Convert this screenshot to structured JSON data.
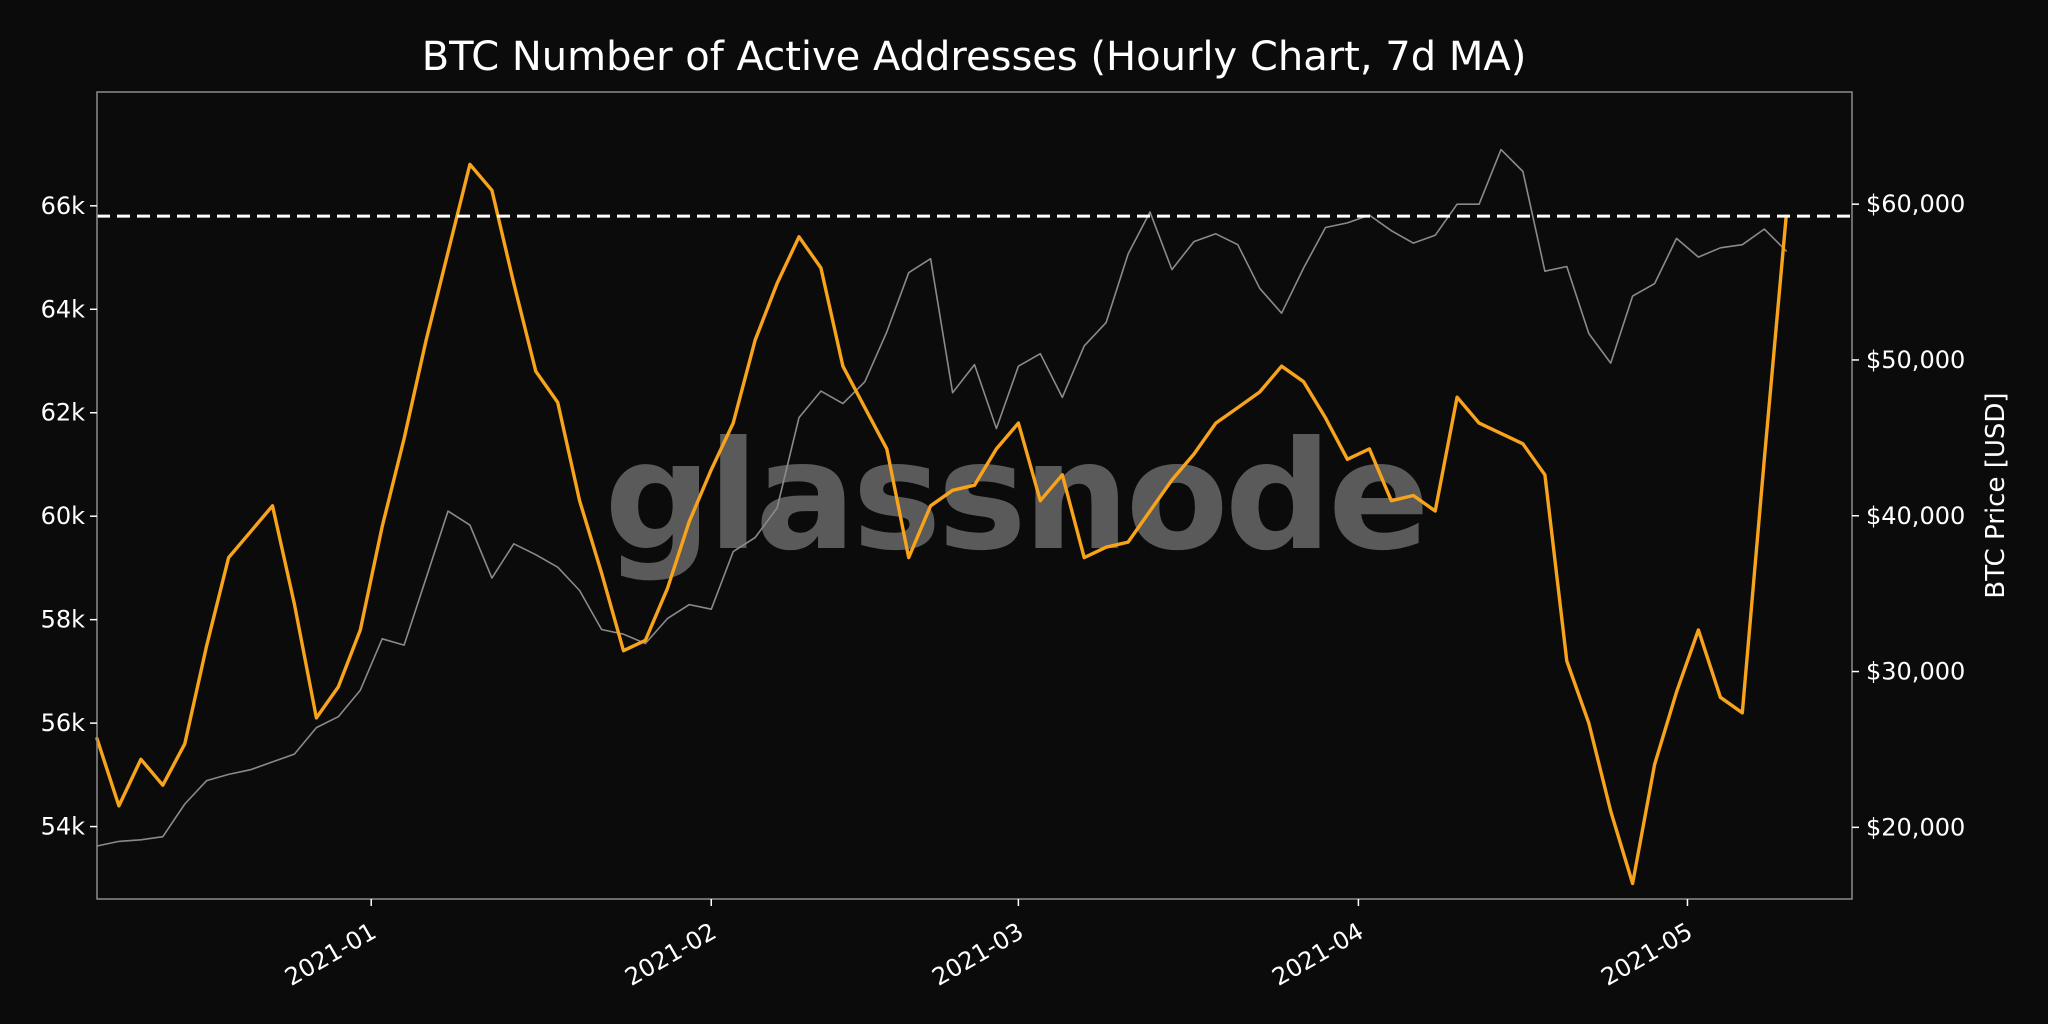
{
  "chart_data": {
    "type": "line",
    "title": "BTC Number of Active Addresses (Hourly Chart, 7d MA)",
    "watermark": "glassnode",
    "xlabel": "",
    "x_tick_labels": [
      "2021-01",
      "2021-02",
      "2021-03",
      "2021-04",
      "2021-05"
    ],
    "x_ticks": [
      "2021-01-01",
      "2021-02-01",
      "2021-03-01",
      "2021-04-01",
      "2021-05-01"
    ],
    "xlim": [
      "2020-12-07",
      "2021-05-16"
    ],
    "y_left": {
      "label": "",
      "ylim": [
        52600,
        68200
      ],
      "ticks": [
        54000,
        56000,
        58000,
        60000,
        62000,
        64000,
        66000
      ],
      "tick_labels": [
        "54k",
        "56k",
        "58k",
        "60k",
        "62k",
        "64k",
        "66k"
      ]
    },
    "y_right": {
      "label": "BTC Price [USD]",
      "ylim": [
        15400,
        67200
      ],
      "ticks": [
        20000,
        30000,
        40000,
        50000,
        60000
      ],
      "tick_labels": [
        "$20,000",
        "$30,000",
        "$40,000",
        "$50,000",
        "$60,000"
      ]
    },
    "reference_line": {
      "axis": "left",
      "value": 65800,
      "style": "dashed",
      "color": "#ffffff"
    },
    "grid": false,
    "series": [
      {
        "axis": "left",
        "color": "#f7a31c",
        "x": [
          "2020-12-07",
          "2020-12-09",
          "2020-12-11",
          "2020-12-13",
          "2020-12-15",
          "2020-12-17",
          "2020-12-19",
          "2020-12-21",
          "2020-12-23",
          "2020-12-25",
          "2020-12-27",
          "2020-12-29",
          "2020-12-31",
          "2021-01-02",
          "2021-01-04",
          "2021-01-06",
          "2021-01-08",
          "2021-01-10",
          "2021-01-12",
          "2021-01-14",
          "2021-01-16",
          "2021-01-18",
          "2021-01-20",
          "2021-01-22",
          "2021-01-24",
          "2021-01-26",
          "2021-01-28",
          "2021-01-30",
          "2021-02-01",
          "2021-02-03",
          "2021-02-05",
          "2021-02-07",
          "2021-02-09",
          "2021-02-11",
          "2021-02-13",
          "2021-02-15",
          "2021-02-17",
          "2021-02-19",
          "2021-02-21",
          "2021-02-23",
          "2021-02-25",
          "2021-02-27",
          "2021-03-01",
          "2021-03-03",
          "2021-03-05",
          "2021-03-07",
          "2021-03-09",
          "2021-03-11",
          "2021-03-13",
          "2021-03-15",
          "2021-03-17",
          "2021-03-19",
          "2021-03-21",
          "2021-03-23",
          "2021-03-25",
          "2021-03-27",
          "2021-03-29",
          "2021-03-31",
          "2021-04-02",
          "2021-04-04",
          "2021-04-06",
          "2021-04-08",
          "2021-04-10",
          "2021-04-12",
          "2021-04-14",
          "2021-04-16",
          "2021-04-18",
          "2021-04-20",
          "2021-04-22",
          "2021-04-24",
          "2021-04-26",
          "2021-04-28",
          "2021-04-30",
          "2021-05-02",
          "2021-05-04",
          "2021-05-06",
          "2021-05-08",
          "2021-05-10"
        ],
        "values": [
          55700,
          54400,
          55300,
          54800,
          55600,
          57500,
          59200,
          59700,
          60200,
          58300,
          56100,
          56700,
          57800,
          59800,
          61500,
          63400,
          65100,
          66800,
          66300,
          64500,
          62800,
          62200,
          60300,
          58900,
          57400,
          57600,
          58600,
          59900,
          60900,
          61800,
          63400,
          64500,
          65400,
          64800,
          62900,
          62100,
          61300,
          59200,
          60200,
          60500,
          60600,
          61300,
          61800,
          60300,
          60800,
          59200,
          59400,
          59500,
          60100,
          60700,
          61200,
          61800,
          62100,
          62400,
          62900,
          62600,
          61900,
          61100,
          61300,
          60300,
          60400,
          60100,
          62300,
          61800,
          61600,
          61400,
          60800,
          57200,
          56000,
          54300,
          52900,
          55200,
          56600,
          57800,
          56500,
          56200,
          61100,
          65800
        ]
      },
      {
        "axis": "right",
        "color": "#8a8a8a",
        "x": [
          "2020-12-07",
          "2020-12-09",
          "2020-12-11",
          "2020-12-13",
          "2020-12-15",
          "2020-12-17",
          "2020-12-19",
          "2020-12-21",
          "2020-12-23",
          "2020-12-25",
          "2020-12-27",
          "2020-12-29",
          "2020-12-31",
          "2021-01-02",
          "2021-01-04",
          "2021-01-06",
          "2021-01-08",
          "2021-01-10",
          "2021-01-12",
          "2021-01-14",
          "2021-01-16",
          "2021-01-18",
          "2021-01-20",
          "2021-01-22",
          "2021-01-24",
          "2021-01-26",
          "2021-01-28",
          "2021-01-30",
          "2021-02-01",
          "2021-02-03",
          "2021-02-05",
          "2021-02-07",
          "2021-02-09",
          "2021-02-11",
          "2021-02-13",
          "2021-02-15",
          "2021-02-17",
          "2021-02-19",
          "2021-02-21",
          "2021-02-23",
          "2021-02-25",
          "2021-02-27",
          "2021-03-01",
          "2021-03-03",
          "2021-03-05",
          "2021-03-07",
          "2021-03-09",
          "2021-03-11",
          "2021-03-13",
          "2021-03-15",
          "2021-03-17",
          "2021-03-19",
          "2021-03-21",
          "2021-03-23",
          "2021-03-25",
          "2021-03-27",
          "2021-03-29",
          "2021-03-31",
          "2021-04-02",
          "2021-04-04",
          "2021-04-06",
          "2021-04-08",
          "2021-04-10",
          "2021-04-12",
          "2021-04-14",
          "2021-04-16",
          "2021-04-18",
          "2021-04-20",
          "2021-04-22",
          "2021-04-24",
          "2021-04-26",
          "2021-04-28",
          "2021-04-30",
          "2021-05-02",
          "2021-05-04",
          "2021-05-06",
          "2021-05-08",
          "2021-05-10"
        ],
        "values": [
          18800,
          19100,
          19200,
          19400,
          21500,
          23000,
          23400,
          23700,
          24200,
          24700,
          26400,
          27100,
          28800,
          32100,
          31700,
          36000,
          40300,
          39400,
          36000,
          38200,
          37500,
          36700,
          35200,
          32700,
          32400,
          31800,
          33400,
          34300,
          34000,
          37700,
          38600,
          40500,
          46300,
          48000,
          47200,
          48600,
          51800,
          55600,
          56500,
          47900,
          49700,
          45600,
          49600,
          50400,
          47600,
          50900,
          52400,
          56800,
          59500,
          55800,
          57600,
          58100,
          57400,
          54600,
          53000,
          55900,
          58500,
          58800,
          59300,
          58300,
          57500,
          58000,
          60000,
          60000,
          63500,
          62100,
          55700,
          56000,
          51700,
          49800,
          54100,
          54900,
          57800,
          56600,
          57200,
          57400,
          58400,
          57000
        ]
      }
    ]
  }
}
